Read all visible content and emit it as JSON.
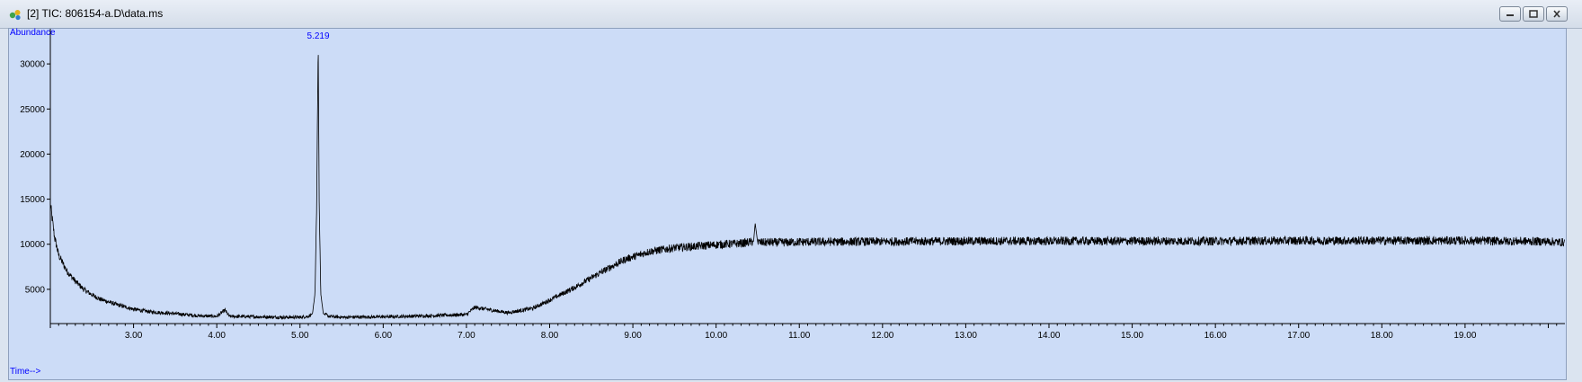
{
  "window": {
    "title": "[2] TIC: 806154-a.D\\data.ms",
    "icon": "chromatogram-app-icon",
    "buttons": [
      "minimize-icon",
      "restore-icon",
      "close-icon"
    ]
  },
  "chart_data": {
    "type": "line",
    "title": "",
    "xlabel": "Time-->",
    "ylabel": "Abundance",
    "xlim": [
      2.0,
      20.2
    ],
    "ylim": [
      1200,
      33500
    ],
    "grid": false,
    "line_color": "#000000",
    "label_color": "#0000ff",
    "background": "#ccdcf7",
    "x_ticks": [
      "3.00",
      "4.00",
      "5.00",
      "6.00",
      "7.00",
      "8.00",
      "9.00",
      "10.00",
      "11.00",
      "12.00",
      "13.00",
      "14.00",
      "15.00",
      "16.00",
      "17.00",
      "18.00",
      "19.00"
    ],
    "y_ticks": [
      "5000",
      "10000",
      "15000",
      "20000",
      "25000",
      "30000"
    ],
    "annotations": [
      {
        "x": 5.219,
        "y": 32600,
        "text": "5.219"
      }
    ],
    "series": [
      {
        "x": [
          2.0,
          2.05,
          2.1,
          2.2,
          2.3,
          2.4,
          2.5,
          2.6,
          2.8,
          3.0,
          3.2,
          3.5,
          3.8,
          4.0,
          4.1,
          4.15,
          4.5,
          4.8,
          5.0,
          5.1,
          5.15,
          5.18,
          5.2,
          5.219,
          5.23,
          5.25,
          5.28,
          5.35,
          5.5,
          6.0,
          6.5,
          7.0,
          7.1,
          7.5,
          7.8,
          8.0,
          8.3,
          8.6,
          8.9,
          9.2,
          9.5,
          9.8,
          10.0,
          10.3,
          10.45,
          10.47,
          10.5,
          10.8,
          11.0,
          12.0,
          13.0,
          14.0,
          15.0,
          16.0,
          17.0,
          18.0,
          19.0,
          20.0,
          20.2
        ],
        "y": [
          14500,
          10800,
          8800,
          7000,
          5900,
          5000,
          4400,
          3900,
          3300,
          2800,
          2500,
          2300,
          2050,
          2000,
          2700,
          2000,
          1950,
          1900,
          1900,
          2000,
          2300,
          4500,
          14000,
          32600,
          15000,
          4500,
          2300,
          2000,
          1900,
          1950,
          2050,
          2200,
          3000,
          2400,
          2900,
          3800,
          5200,
          6800,
          8300,
          9200,
          9600,
          9800,
          9950,
          10100,
          10300,
          12300,
          10200,
          10200,
          10250,
          10300,
          10350,
          10350,
          10350,
          10350,
          10400,
          10400,
          10400,
          10300,
          10200
        ]
      }
    ]
  }
}
